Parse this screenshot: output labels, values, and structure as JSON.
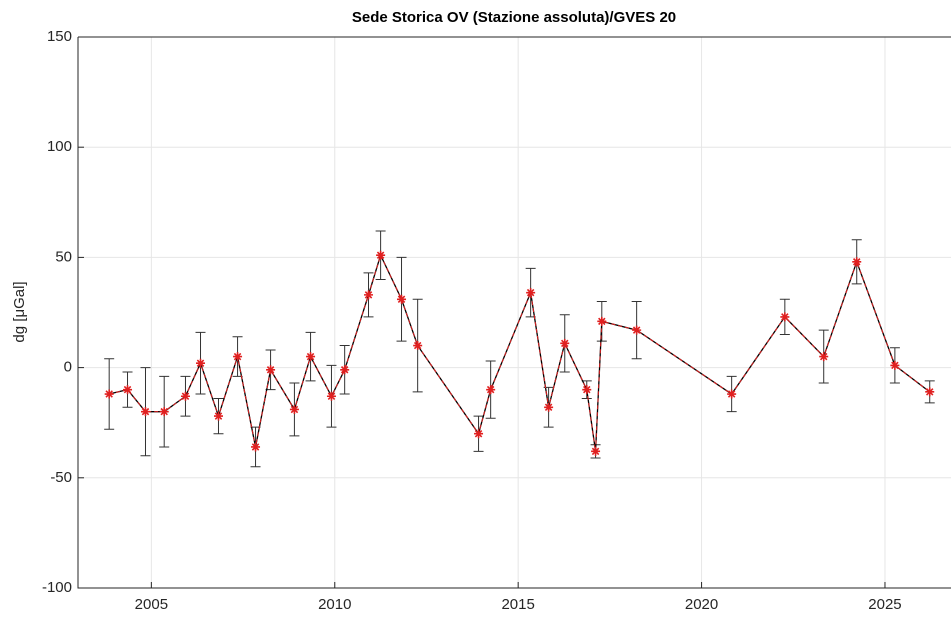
{
  "chart_data": {
    "type": "errorbar",
    "title": "Sede Storica OV (Stazione assoluta)/GVES 20",
    "ylabel": "dg [μGal]",
    "x": [
      2003.85,
      2004.35,
      2004.84,
      2005.35,
      2005.93,
      2006.34,
      2006.83,
      2007.35,
      2007.84,
      2008.25,
      2008.9,
      2009.34,
      2009.91,
      2010.27,
      2010.92,
      2011.25,
      2011.82,
      2012.26,
      2013.92,
      2014.25,
      2015.34,
      2015.83,
      2016.27,
      2016.87,
      2017.11,
      2017.28,
      2018.23,
      2020.82,
      2022.27,
      2023.33,
      2024.23,
      2025.27,
      2026.22
    ],
    "series": [
      {
        "color": "#e02020",
        "line_color": "#000000",
        "values": [
          -12,
          -10,
          -20,
          -20,
          -13,
          2,
          -22,
          5,
          -36,
          -1,
          -19,
          5,
          -13,
          -1,
          33,
          51,
          31,
          10,
          -30,
          -10,
          34,
          -18,
          11,
          -10,
          -38,
          21,
          17,
          -12,
          23,
          5,
          48,
          1,
          -11
        ],
        "errors": [
          16,
          8,
          20,
          16,
          9,
          14,
          8,
          9,
          9,
          9,
          12,
          11,
          14,
          11,
          10,
          11,
          19,
          21,
          8,
          13,
          11,
          9,
          13,
          4,
          3,
          9,
          13,
          8,
          8,
          12,
          10,
          8,
          5
        ]
      }
    ],
    "xlim": [
      2003,
      2026.8
    ],
    "xticks": [
      2005,
      2010,
      2015,
      2020,
      2025
    ],
    "ylim": [
      -100,
      150
    ],
    "yticks": [
      -100,
      -50,
      0,
      50,
      100,
      150
    ],
    "grid": true
  }
}
